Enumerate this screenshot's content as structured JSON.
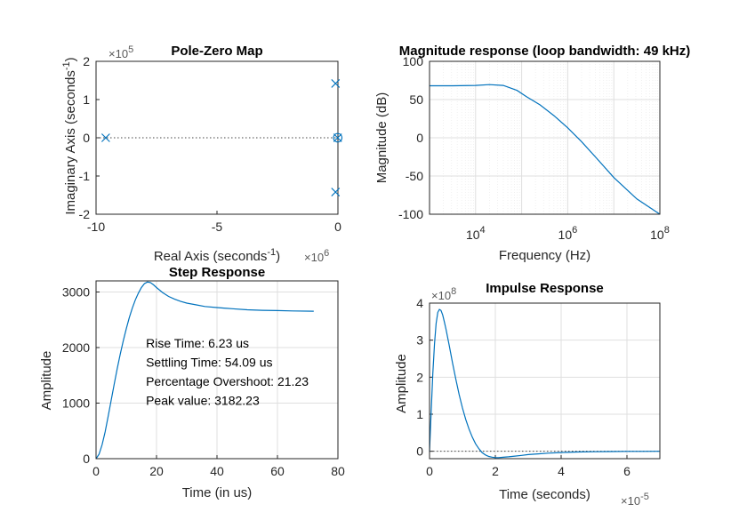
{
  "chart_data": [
    {
      "id": "pz",
      "type": "scatter",
      "title": "Pole-Zero Map",
      "xlabel": "Real Axis (seconds",
      "xlabel_sup": "-1",
      "xlabel_post": ")",
      "ylabel": "Imaginary Axis (seconds",
      "ylabel_sup": "-1",
      "ylabel_post": ")",
      "x_exponent": "×10",
      "x_exponent_power": "6",
      "y_exponent": "×10",
      "y_exponent_power": "5",
      "xlim": [
        -10,
        0
      ],
      "ylim": [
        -2,
        2
      ],
      "xticks": [
        -10,
        -5,
        0
      ],
      "yticks": [
        -2,
        -1,
        0,
        1,
        2
      ],
      "xtick_labels": [
        "-10",
        "-5",
        "0"
      ],
      "ytick_labels": [
        "-2",
        "-1",
        "0",
        "1",
        "2"
      ],
      "poles": [
        {
          "x": -9.6,
          "y": 0
        },
        {
          "x": -0.1,
          "y": 1.42
        },
        {
          "x": -0.1,
          "y": -1.42
        },
        {
          "x": -0.01,
          "y": 0
        }
      ],
      "zeros": [
        {
          "x": -0.01,
          "y": 0
        }
      ]
    },
    {
      "id": "mag",
      "type": "line",
      "title": "Magnitude response (loop bandwidth: 49 kHz)",
      "xlabel": "Frequency  (Hz)",
      "ylabel": "Magnitude (dB)",
      "xscale": "log",
      "xlim_log10": [
        3,
        8
      ],
      "ylim": [
        -100,
        100
      ],
      "xticks_log10": [
        4,
        6,
        8
      ],
      "xtick_base": "10",
      "xtick_powers": [
        "4",
        "6",
        "8"
      ],
      "yticks": [
        -100,
        -50,
        0,
        50,
        100
      ],
      "ytick_labels": [
        "-100",
        "-50",
        "0",
        "50",
        "100"
      ],
      "series": [
        {
          "name": "magnitude",
          "log10_freq": [
            3,
            3.5,
            4,
            4.3,
            4.6,
            4.9,
            5.1,
            5.4,
            5.7,
            6,
            6.3,
            6.6,
            7,
            7.5,
            8
          ],
          "db": [
            68,
            68,
            68.5,
            69.5,
            68.5,
            62,
            54,
            43,
            29,
            13,
            -5,
            -25,
            -52,
            -80,
            -100
          ]
        }
      ]
    },
    {
      "id": "step",
      "type": "line",
      "title": "Step Response",
      "xlabel": "Time (in us)",
      "ylabel": "Amplitude",
      "xlim": [
        0,
        80
      ],
      "ylim": [
        0,
        3200
      ],
      "xticks": [
        0,
        20,
        40,
        60,
        80
      ],
      "yticks": [
        0,
        1000,
        2000,
        3000
      ],
      "xtick_labels": [
        "0",
        "20",
        "40",
        "60",
        "80"
      ],
      "ytick_labels": [
        "0",
        "1000",
        "2000",
        "3000"
      ],
      "annotations": [
        "Rise Time: 6.23 us",
        "Settling Time: 54.09 us",
        "Percentage Overshoot: 21.23",
        "Peak value: 3182.23"
      ],
      "series": [
        {
          "name": "step",
          "x": [
            0,
            1,
            2,
            3,
            4,
            5,
            6,
            7,
            8,
            9,
            10,
            11,
            12,
            13,
            14,
            15,
            16,
            17,
            18,
            19,
            20,
            22,
            24,
            26,
            28,
            30,
            33,
            36,
            40,
            45,
            50,
            55,
            60,
            65,
            72
          ],
          "y": [
            0,
            80,
            250,
            480,
            760,
            1050,
            1340,
            1620,
            1880,
            2120,
            2340,
            2540,
            2710,
            2860,
            2980,
            3080,
            3150,
            3180,
            3170,
            3130,
            3080,
            2990,
            2920,
            2870,
            2830,
            2800,
            2770,
            2740,
            2720,
            2700,
            2680,
            2670,
            2665,
            2660,
            2655
          ]
        }
      ]
    },
    {
      "id": "impulse",
      "type": "line",
      "title": "Impulse Response",
      "xlabel": "Time (seconds)",
      "ylabel": "Amplitude",
      "x_exponent": "×10",
      "x_exponent_power": "-5",
      "y_exponent": "×10",
      "y_exponent_power": "8",
      "xlim": [
        0,
        7
      ],
      "ylim": [
        -0.2,
        4
      ],
      "xticks": [
        0,
        2,
        4,
        6
      ],
      "yticks": [
        0,
        1,
        2,
        3,
        4
      ],
      "xtick_labels": [
        "0",
        "2",
        "4",
        "6"
      ],
      "ytick_labels": [
        "0",
        "1",
        "2",
        "3",
        "4"
      ],
      "series": [
        {
          "name": "impulse",
          "x": [
            0,
            0.05,
            0.1,
            0.15,
            0.2,
            0.25,
            0.3,
            0.35,
            0.4,
            0.45,
            0.5,
            0.6,
            0.7,
            0.8,
            0.9,
            1.0,
            1.1,
            1.2,
            1.3,
            1.4,
            1.5,
            1.6,
            1.7,
            1.8,
            1.9,
            2.0,
            2.1,
            2.2,
            2.4,
            2.6,
            2.8,
            3.0,
            3.3,
            3.6,
            4.0,
            4.5,
            5.0,
            5.5,
            6.0,
            6.5,
            7.0
          ],
          "y": [
            0,
            1.1,
            2.1,
            2.9,
            3.45,
            3.75,
            3.83,
            3.8,
            3.68,
            3.5,
            3.3,
            2.85,
            2.38,
            1.94,
            1.53,
            1.17,
            0.86,
            0.6,
            0.38,
            0.2,
            0.07,
            -0.04,
            -0.1,
            -0.14,
            -0.16,
            -0.17,
            -0.17,
            -0.165,
            -0.15,
            -0.13,
            -0.11,
            -0.09,
            -0.07,
            -0.05,
            -0.035,
            -0.02,
            -0.012,
            -0.007,
            -0.004,
            -0.002,
            -0.001
          ]
        }
      ]
    }
  ]
}
